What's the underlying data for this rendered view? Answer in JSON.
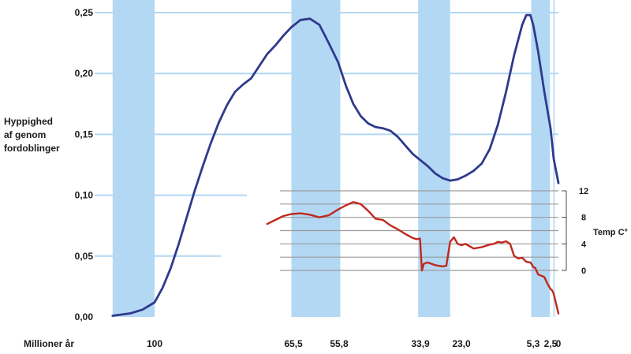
{
  "chart_data": {
    "type": "line",
    "title": "",
    "ylabel": [
      "Hyppighed",
      "af genom",
      "fordoblinger"
    ],
    "xlabel": "Millioner år",
    "y_ticks": [
      "0,00",
      "0,05",
      "0,10",
      "0,15",
      "0,20",
      "0,25"
    ],
    "y_tick_values": [
      0,
      0.05,
      0.1,
      0.15,
      0.2,
      0.25
    ],
    "ylim": [
      0,
      0.25
    ],
    "x_ticks": [
      "100",
      "65,5",
      "55,8",
      "33,9",
      "23,0",
      "5,3",
      "2,5",
      "0"
    ],
    "x_tick_values": [
      100,
      65.5,
      55.8,
      33.9,
      23.0,
      5.3,
      2.5,
      0
    ],
    "x_direction": "decreasing (time before present)",
    "grid": true,
    "shaded_bands_ma": [
      [
        107,
        100
      ],
      [
        66,
        55.5
      ],
      [
        34.5,
        26
      ],
      [
        5.8,
        2.6
      ],
      [
        1.6,
        1.2
      ]
    ],
    "series": [
      {
        "name": "",
        "color": "#2e3a8c",
        "x": [
          107,
          104,
          102,
          100,
          98,
          96,
          94,
          92,
          90,
          88,
          86,
          84,
          82,
          80,
          78,
          76,
          74,
          72,
          70,
          68,
          66,
          64,
          62,
          60,
          58,
          56,
          54,
          52,
          50,
          48,
          46,
          44,
          42,
          40,
          38,
          36,
          34,
          32,
          30,
          28,
          26,
          24,
          22,
          20,
          18,
          16,
          14,
          12,
          10,
          8,
          7,
          6,
          5.3,
          4.5,
          3.5,
          2.5,
          1.5,
          0
        ],
        "values": [
          0.001,
          0.003,
          0.006,
          0.012,
          0.024,
          0.04,
          0.06,
          0.082,
          0.104,
          0.124,
          0.143,
          0.16,
          0.174,
          0.185,
          0.191,
          0.196,
          0.206,
          0.216,
          0.223,
          0.231,
          0.238,
          0.244,
          0.245,
          0.24,
          0.225,
          0.209,
          0.19,
          0.175,
          0.165,
          0.159,
          0.156,
          0.155,
          0.153,
          0.148,
          0.141,
          0.134,
          0.129,
          0.124,
          0.118,
          0.114,
          0.112,
          0.113,
          0.116,
          0.12,
          0.126,
          0.138,
          0.158,
          0.185,
          0.215,
          0.24,
          0.248,
          0.248,
          0.24,
          0.218,
          0.185,
          0.155,
          0.13,
          0.11
        ]
      },
      {
        "name": "",
        "color": "#c0281e",
        "axis": "temperature",
        "x": [
          72,
          70,
          68,
          66,
          64,
          62,
          60,
          58,
          56,
          54,
          52,
          50,
          48,
          46,
          44,
          42,
          40,
          38,
          36,
          35,
          34,
          33.5,
          33,
          32,
          30,
          28,
          27,
          26,
          25,
          24,
          23,
          22,
          20,
          18,
          16,
          15,
          14,
          13,
          12,
          11,
          10,
          9,
          8,
          7,
          6,
          5.5,
          5.3,
          5,
          4.5,
          4,
          3.5,
          3,
          2.5,
          2,
          1.5,
          1,
          0.5,
          0
        ],
        "values": [
          7.0,
          7.6,
          8.2,
          8.5,
          8.6,
          8.4,
          8.0,
          8.3,
          9.2,
          9.8,
          10.3,
          10.0,
          9.0,
          7.8,
          7.6,
          6.8,
          6.2,
          5.5,
          4.9,
          4.7,
          4.8,
          0.0,
          1.0,
          1.2,
          0.8,
          0.6,
          0.7,
          4.3,
          5.0,
          4.0,
          3.8,
          4.0,
          3.3,
          3.5,
          3.9,
          4.0,
          4.3,
          4.2,
          4.4,
          4.0,
          2.2,
          1.8,
          1.9,
          1.3,
          1.2,
          0.8,
          0.5,
          0.4,
          -0.6,
          -0.8,
          -1.0,
          -2.0,
          -2.8,
          -3.0,
          -3.5,
          -4.5,
          -5.5,
          -6.5
        ]
      }
    ],
    "temp_axis": {
      "label": "Temp C°",
      "ticks": [
        "12",
        "8",
        "4",
        "0"
      ],
      "tick_values": [
        12,
        8,
        4,
        0
      ],
      "grid_values": [
        12,
        10,
        8,
        6,
        4,
        2,
        0
      ],
      "x_extent_ma": [
        72,
        0
      ]
    }
  }
}
